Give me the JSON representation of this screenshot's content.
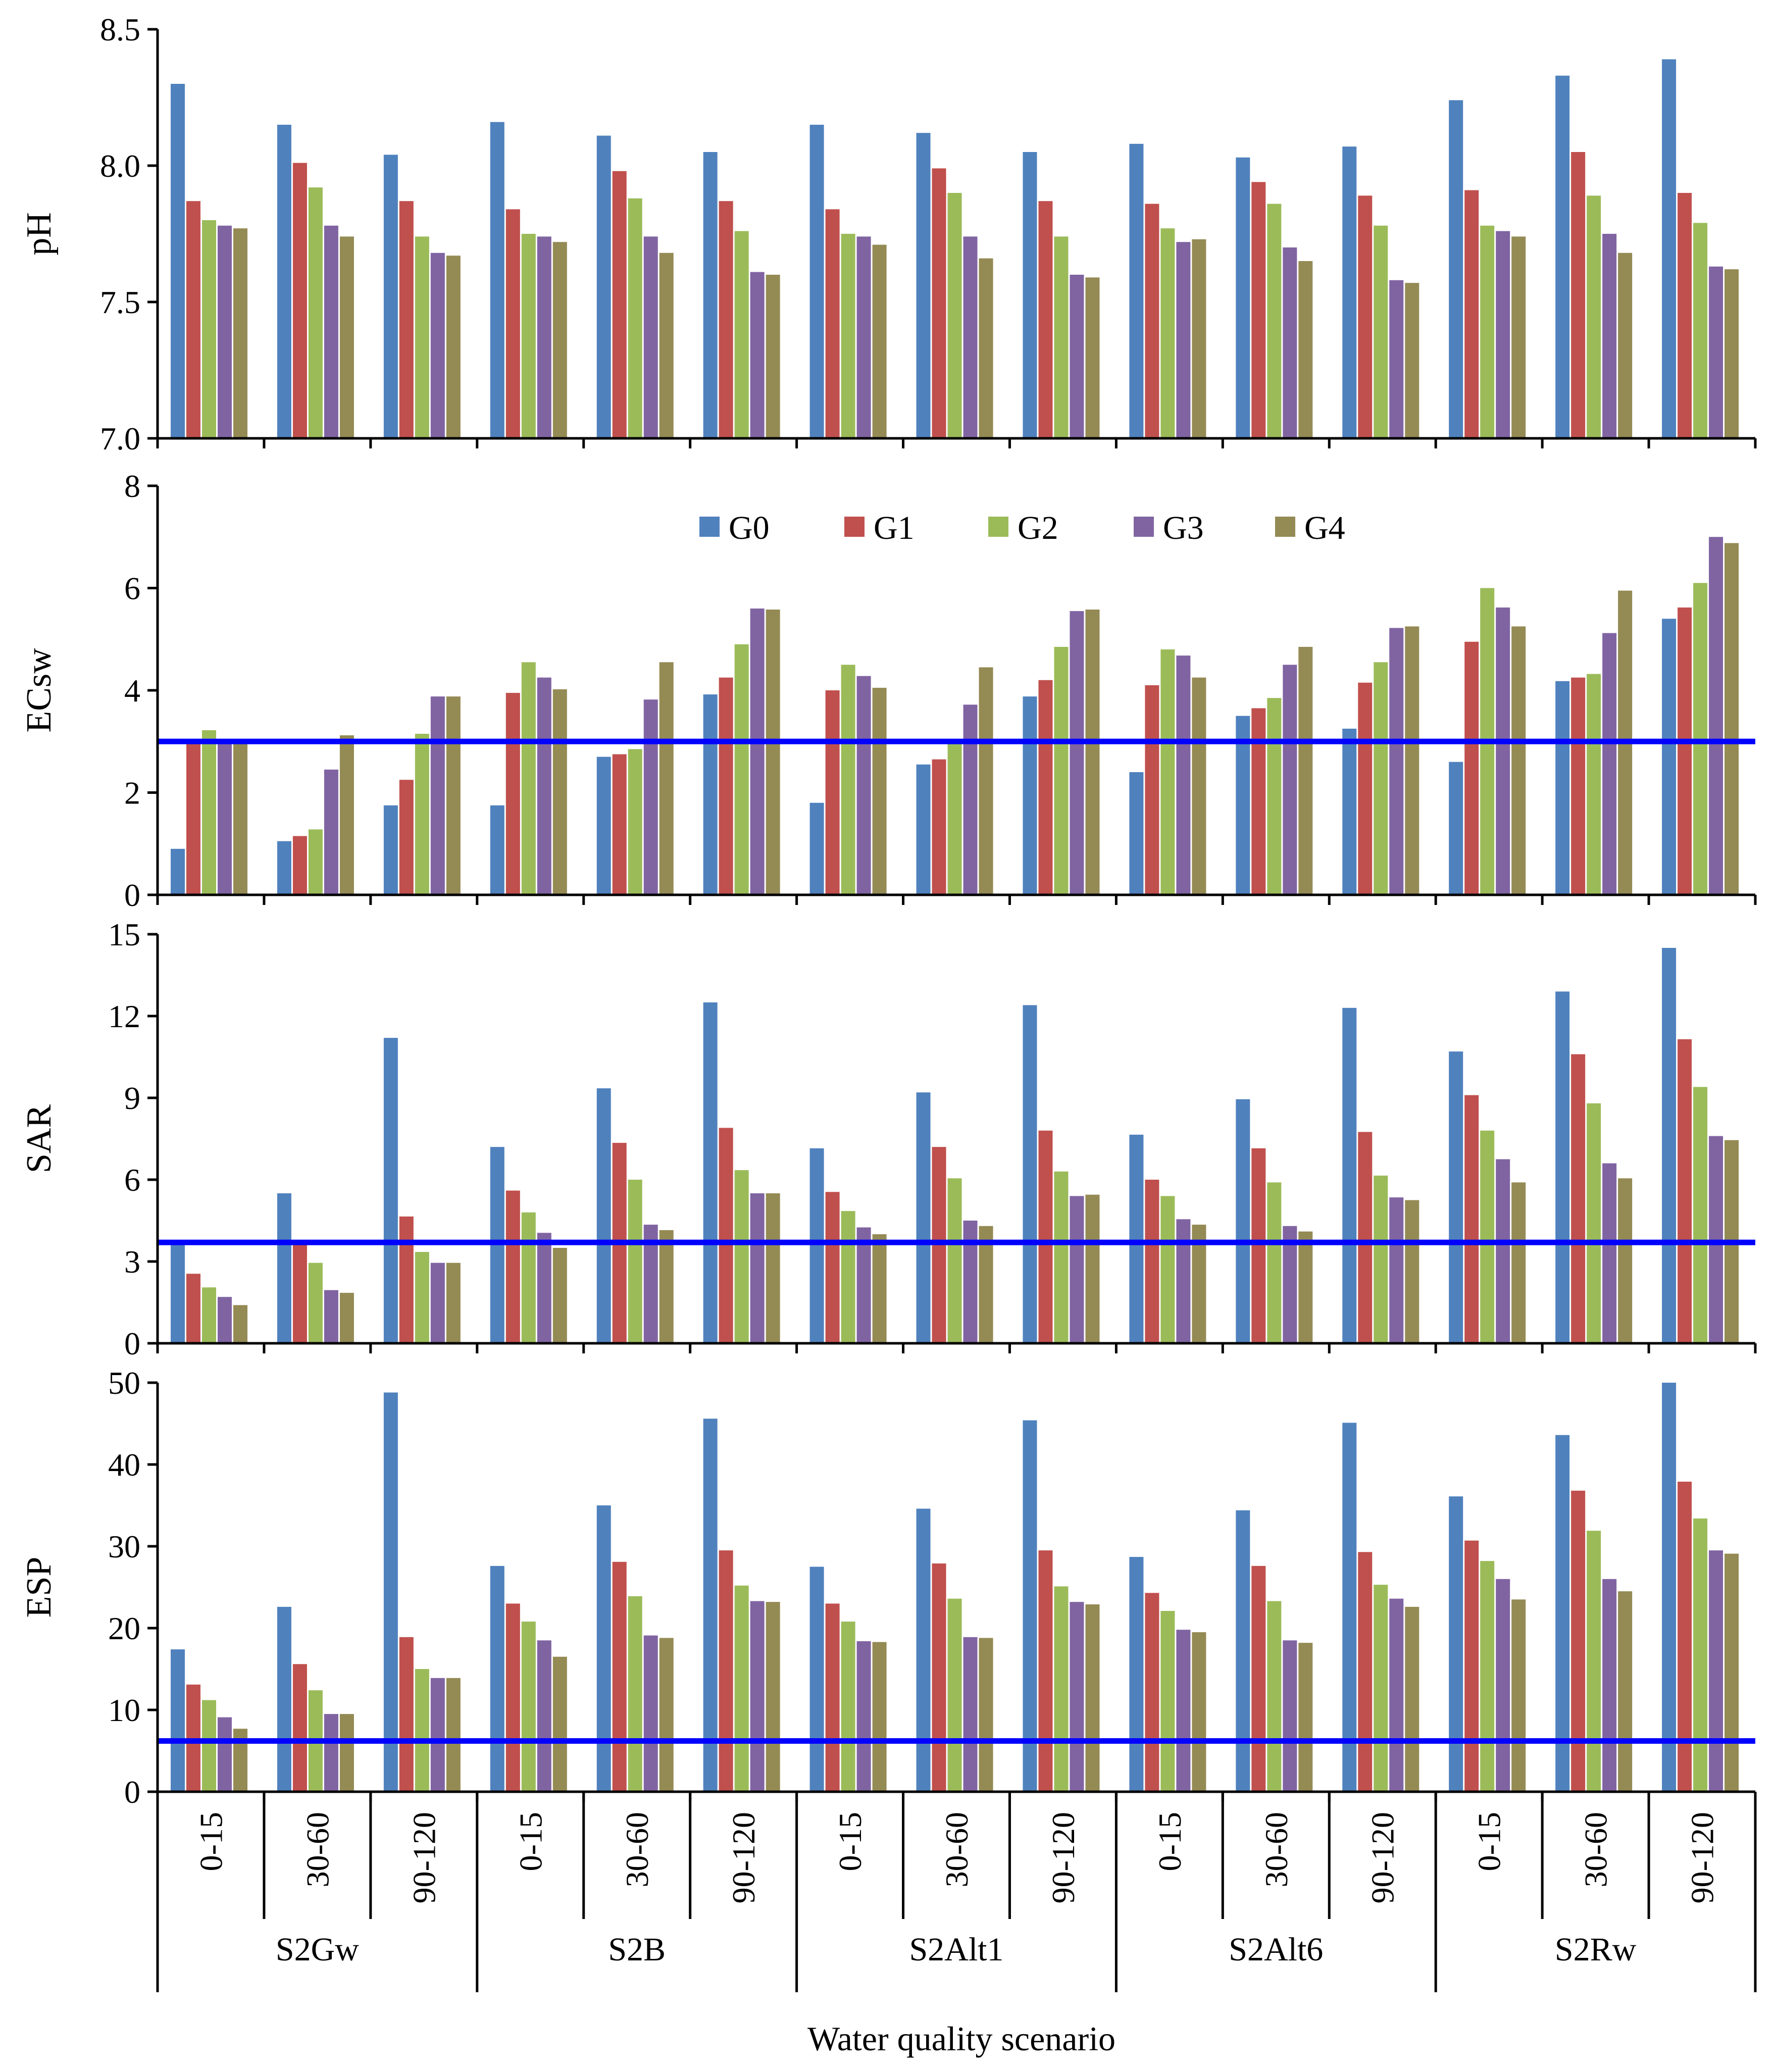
{
  "series_names": [
    "G0",
    "G1",
    "G2",
    "G3",
    "G4"
  ],
  "colors": {
    "G0": "#4F81BD",
    "G1": "#C0504D",
    "G2": "#9BBB59",
    "G3": "#8064A2",
    "G4": "#948A54",
    "threshold_line": "#0000FF",
    "axis": "#000000"
  },
  "chart_data": [
    {
      "type": "bar",
      "name": "ph",
      "ylabel": "pH",
      "ylim": [
        7.0,
        8.5
      ],
      "yticks": [
        "7.0",
        "7.5",
        "8.0",
        "8.5"
      ],
      "threshold": null,
      "series": [
        {
          "name": "G0",
          "values": [
            8.3,
            8.15,
            8.04,
            8.16,
            8.11,
            8.05,
            8.15,
            8.12,
            8.05,
            8.08,
            8.03,
            8.07,
            8.24,
            8.33,
            8.39
          ]
        },
        {
          "name": "G1",
          "values": [
            7.87,
            8.01,
            7.87,
            7.84,
            7.98,
            7.87,
            7.84,
            7.99,
            7.87,
            7.86,
            7.94,
            7.89,
            7.91,
            8.05,
            7.9
          ]
        },
        {
          "name": "G2",
          "values": [
            7.8,
            7.92,
            7.74,
            7.75,
            7.88,
            7.76,
            7.75,
            7.9,
            7.74,
            7.77,
            7.86,
            7.78,
            7.78,
            7.89,
            7.79
          ]
        },
        {
          "name": "G3",
          "values": [
            7.78,
            7.78,
            7.68,
            7.74,
            7.74,
            7.61,
            7.74,
            7.74,
            7.6,
            7.72,
            7.7,
            7.58,
            7.76,
            7.75,
            7.63
          ]
        },
        {
          "name": "G4",
          "values": [
            7.77,
            7.74,
            7.67,
            7.72,
            7.68,
            7.6,
            7.71,
            7.66,
            7.59,
            7.73,
            7.65,
            7.57,
            7.74,
            7.68,
            7.62
          ]
        }
      ]
    },
    {
      "type": "bar",
      "name": "ecsw",
      "ylabel": "ECsw",
      "ylim": [
        0,
        8
      ],
      "yticks": [
        "0",
        "2",
        "4",
        "6",
        "8"
      ],
      "threshold": 3.0,
      "legend": "top-center",
      "series": [
        {
          "name": "G0",
          "values": [
            0.9,
            1.05,
            1.75,
            1.75,
            2.7,
            3.92,
            1.8,
            2.55,
            3.88,
            2.4,
            3.5,
            3.25,
            2.6,
            4.18,
            5.4
          ]
        },
        {
          "name": "G1",
          "values": [
            3.0,
            1.15,
            2.25,
            3.95,
            2.75,
            4.25,
            4.0,
            2.65,
            4.2,
            4.1,
            3.65,
            4.15,
            4.95,
            4.25,
            5.62
          ]
        },
        {
          "name": "G2",
          "values": [
            3.22,
            1.28,
            3.15,
            4.55,
            2.85,
            4.9,
            4.5,
            2.95,
            4.85,
            4.8,
            3.85,
            4.55,
            6.0,
            4.32,
            6.1
          ]
        },
        {
          "name": "G3",
          "values": [
            3.05,
            2.45,
            3.88,
            4.25,
            3.82,
            5.6,
            4.28,
            3.72,
            5.55,
            4.68,
            4.5,
            5.22,
            5.62,
            5.12,
            7.0
          ]
        },
        {
          "name": "G4",
          "values": [
            3.02,
            3.12,
            3.88,
            4.02,
            4.55,
            5.58,
            4.05,
            4.45,
            5.58,
            4.25,
            4.85,
            5.25,
            5.25,
            5.95,
            6.88
          ]
        }
      ]
    },
    {
      "type": "bar",
      "name": "sar",
      "ylabel": "SAR",
      "ylim": [
        0,
        15
      ],
      "yticks": [
        "0",
        "3",
        "6",
        "9",
        "12",
        "15"
      ],
      "threshold": 3.7,
      "series": [
        {
          "name": "G0",
          "values": [
            3.7,
            5.5,
            11.2,
            7.2,
            9.35,
            12.5,
            7.15,
            9.2,
            12.4,
            7.65,
            8.95,
            12.3,
            10.7,
            12.9,
            14.5
          ]
        },
        {
          "name": "G1",
          "values": [
            2.55,
            3.7,
            4.65,
            5.6,
            7.35,
            7.9,
            5.55,
            7.2,
            7.8,
            6.0,
            7.15,
            7.75,
            9.1,
            10.6,
            11.15
          ]
        },
        {
          "name": "G2",
          "values": [
            2.05,
            2.95,
            3.35,
            4.8,
            6.0,
            6.35,
            4.85,
            6.05,
            6.3,
            5.4,
            5.9,
            6.15,
            7.8,
            8.8,
            9.4
          ]
        },
        {
          "name": "G3",
          "values": [
            1.7,
            1.95,
            2.95,
            4.05,
            4.35,
            5.5,
            4.25,
            4.5,
            5.4,
            4.55,
            4.3,
            5.35,
            6.75,
            6.6,
            7.6
          ]
        },
        {
          "name": "G4",
          "values": [
            1.4,
            1.85,
            2.95,
            3.5,
            4.15,
            5.5,
            4.0,
            4.3,
            5.45,
            4.35,
            4.1,
            5.25,
            5.9,
            6.05,
            7.45
          ]
        }
      ]
    },
    {
      "type": "bar",
      "name": "esp",
      "ylabel": "ESP",
      "ylim": [
        0,
        50
      ],
      "yticks": [
        "0",
        "10",
        "20",
        "30",
        "40",
        "50"
      ],
      "threshold": 6.2,
      "series": [
        {
          "name": "G0",
          "values": [
            17.4,
            22.6,
            48.8,
            27.6,
            35.0,
            45.6,
            27.5,
            34.6,
            45.4,
            28.7,
            34.4,
            45.1,
            36.1,
            43.6,
            50.0
          ]
        },
        {
          "name": "G1",
          "values": [
            13.1,
            15.6,
            18.9,
            23.0,
            28.1,
            29.5,
            23.0,
            27.9,
            29.5,
            24.3,
            27.6,
            29.3,
            30.7,
            36.8,
            37.9
          ]
        },
        {
          "name": "G2",
          "values": [
            11.2,
            12.4,
            15.0,
            20.8,
            23.9,
            25.2,
            20.8,
            23.6,
            25.1,
            22.1,
            23.3,
            25.3,
            28.2,
            31.9,
            33.4
          ]
        },
        {
          "name": "G3",
          "values": [
            9.1,
            9.5,
            13.9,
            18.5,
            19.1,
            23.3,
            18.4,
            18.9,
            23.2,
            19.8,
            18.5,
            23.6,
            26.0,
            26.0,
            29.5
          ]
        },
        {
          "name": "G4",
          "values": [
            7.7,
            9.5,
            13.9,
            16.5,
            18.8,
            23.2,
            18.3,
            18.8,
            22.9,
            19.5,
            18.2,
            22.6,
            23.5,
            24.5,
            29.1
          ]
        }
      ]
    }
  ],
  "x_axis": {
    "depth_labels": [
      "0-15",
      "30-60",
      "90-120",
      "0-15",
      "30-60",
      "90-120",
      "0-15",
      "30-60",
      "90-120",
      "0-15",
      "30-60",
      "90-120",
      "0-15",
      "30-60",
      "90-120"
    ],
    "scenarios": [
      "S2Gw",
      "S2B",
      "S2Alt1",
      "S2Alt6",
      "S2Rw"
    ],
    "title": "Water quality scenario"
  }
}
